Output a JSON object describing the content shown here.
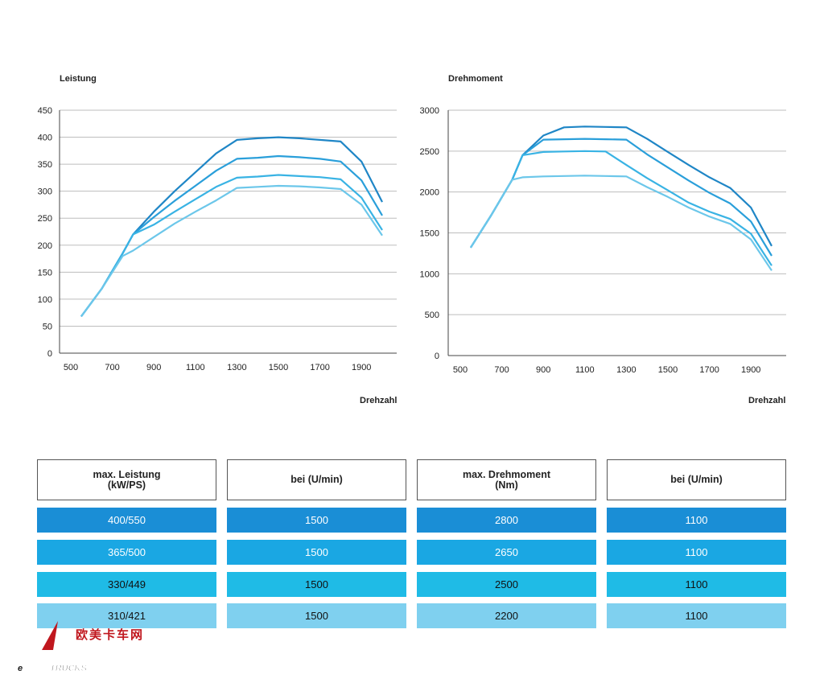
{
  "chart_data": [
    {
      "type": "line",
      "title": "Leistung",
      "xlabel": "Drehzahl",
      "ylabel": "",
      "x_ticks": [
        500,
        700,
        900,
        1100,
        1300,
        1500,
        1700,
        1900
      ],
      "y_ticks": [
        0,
        50,
        100,
        150,
        200,
        250,
        300,
        350,
        400,
        450
      ],
      "xlim": [
        500,
        2100
      ],
      "ylim": [
        0,
        450
      ],
      "grid": "horizontal",
      "series": [
        {
          "color": "#1f86c6",
          "points": [
            [
              550,
              68
            ],
            [
              650,
              120
            ],
            [
              750,
              185
            ],
            [
              800,
              220
            ],
            [
              900,
              262
            ],
            [
              1000,
              300
            ],
            [
              1100,
              335
            ],
            [
              1200,
              370
            ],
            [
              1300,
              395
            ],
            [
              1400,
              398
            ],
            [
              1500,
              400
            ],
            [
              1600,
              398
            ],
            [
              1700,
              395
            ],
            [
              1800,
              392
            ],
            [
              1900,
              355
            ],
            [
              2000,
              280
            ]
          ]
        },
        {
          "color": "#2a9fda",
          "points": [
            [
              550,
              68
            ],
            [
              650,
              120
            ],
            [
              750,
              185
            ],
            [
              800,
              220
            ],
            [
              900,
              252
            ],
            [
              1000,
              282
            ],
            [
              1100,
              310
            ],
            [
              1200,
              338
            ],
            [
              1300,
              360
            ],
            [
              1400,
              362
            ],
            [
              1500,
              365
            ],
            [
              1600,
              363
            ],
            [
              1700,
              360
            ],
            [
              1800,
              355
            ],
            [
              1900,
              320
            ],
            [
              2000,
              255
            ]
          ]
        },
        {
          "color": "#39b3e4",
          "points": [
            [
              550,
              68
            ],
            [
              650,
              120
            ],
            [
              750,
              185
            ],
            [
              800,
              220
            ],
            [
              900,
              238
            ],
            [
              1000,
              262
            ],
            [
              1100,
              285
            ],
            [
              1200,
              308
            ],
            [
              1300,
              325
            ],
            [
              1400,
              327
            ],
            [
              1500,
              330
            ],
            [
              1600,
              328
            ],
            [
              1700,
              326
            ],
            [
              1800,
              322
            ],
            [
              1900,
              288
            ],
            [
              2000,
              228
            ]
          ]
        },
        {
          "color": "#6cc7ea",
          "points": [
            [
              550,
              68
            ],
            [
              650,
              120
            ],
            [
              750,
              180
            ],
            [
              800,
              190
            ],
            [
              900,
              215
            ],
            [
              1000,
              240
            ],
            [
              1100,
              262
            ],
            [
              1200,
              283
            ],
            [
              1300,
              306
            ],
            [
              1400,
              308
            ],
            [
              1500,
              310
            ],
            [
              1600,
              309
            ],
            [
              1700,
              307
            ],
            [
              1800,
              304
            ],
            [
              1900,
              275
            ],
            [
              2000,
              218
            ]
          ]
        }
      ]
    },
    {
      "type": "line",
      "title": "Drehmoment",
      "xlabel": "Drehzahl",
      "ylabel": "",
      "x_ticks": [
        500,
        700,
        900,
        1100,
        1300,
        1500,
        1700,
        1900
      ],
      "y_ticks": [
        0,
        500,
        1000,
        1500,
        2000,
        2500,
        3000
      ],
      "xlim": [
        500,
        2100
      ],
      "ylim": [
        0,
        3000
      ],
      "grid": "horizontal",
      "series": [
        {
          "color": "#1f86c6",
          "points": [
            [
              550,
              1320
            ],
            [
              650,
              1720
            ],
            [
              750,
              2150
            ],
            [
              800,
              2450
            ],
            [
              900,
              2690
            ],
            [
              1000,
              2790
            ],
            [
              1100,
              2800
            ],
            [
              1200,
              2795
            ],
            [
              1300,
              2790
            ],
            [
              1400,
              2650
            ],
            [
              1500,
              2490
            ],
            [
              1600,
              2330
            ],
            [
              1700,
              2180
            ],
            [
              1800,
              2050
            ],
            [
              1900,
              1810
            ],
            [
              2000,
              1340
            ]
          ]
        },
        {
          "color": "#2a9fda",
          "points": [
            [
              550,
              1320
            ],
            [
              650,
              1720
            ],
            [
              750,
              2150
            ],
            [
              800,
              2450
            ],
            [
              900,
              2640
            ],
            [
              1000,
              2645
            ],
            [
              1100,
              2650
            ],
            [
              1200,
              2645
            ],
            [
              1300,
              2640
            ],
            [
              1400,
              2460
            ],
            [
              1500,
              2300
            ],
            [
              1600,
              2140
            ],
            [
              1700,
              1990
            ],
            [
              1800,
              1860
            ],
            [
              1900,
              1640
            ],
            [
              2000,
              1220
            ]
          ]
        },
        {
          "color": "#39b3e4",
          "points": [
            [
              550,
              1320
            ],
            [
              650,
              1720
            ],
            [
              750,
              2150
            ],
            [
              800,
              2450
            ],
            [
              900,
              2490
            ],
            [
              1000,
              2495
            ],
            [
              1100,
              2500
            ],
            [
              1200,
              2495
            ],
            [
              1300,
              2330
            ],
            [
              1400,
              2170
            ],
            [
              1500,
              2020
            ],
            [
              1600,
              1870
            ],
            [
              1700,
              1760
            ],
            [
              1800,
              1670
            ],
            [
              1900,
              1490
            ],
            [
              2000,
              1100
            ]
          ]
        },
        {
          "color": "#6cc7ea",
          "points": [
            [
              550,
              1320
            ],
            [
              650,
              1720
            ],
            [
              750,
              2150
            ],
            [
              800,
              2180
            ],
            [
              900,
              2190
            ],
            [
              1000,
              2195
            ],
            [
              1100,
              2200
            ],
            [
              1200,
              2195
            ],
            [
              1300,
              2190
            ],
            [
              1400,
              2060
            ],
            [
              1500,
              1940
            ],
            [
              1600,
              1810
            ],
            [
              1700,
              1700
            ],
            [
              1800,
              1610
            ],
            [
              1900,
              1420
            ],
            [
              2000,
              1040
            ]
          ]
        }
      ]
    },
    {
      "type": "table",
      "headers": [
        "max. Leistung\n(kW/PS)",
        "bei (U/min)",
        "max. Drehmoment\n(Nm)",
        "bei (U/min)"
      ],
      "rows": [
        {
          "cells": [
            "400/550",
            "1500",
            "2800",
            "1100"
          ],
          "color": "#1a8ed6",
          "text_color": "#ffffff"
        },
        {
          "cells": [
            "365/500",
            "1500",
            "2650",
            "1100"
          ],
          "color": "#1aa7e3",
          "text_color": "#ffffff"
        },
        {
          "cells": [
            "330/449",
            "1500",
            "2500",
            "1100"
          ],
          "color": "#1fbbe6",
          "text_color": "#111111"
        },
        {
          "cells": [
            "310/421",
            "1500",
            "2200",
            "1100"
          ],
          "color": "#7fd0ef",
          "text_color": "#111111"
        }
      ]
    }
  ],
  "logo": {
    "text_cn": "欧美卡车网",
    "text_en": "TRUCKS",
    "letter": "e"
  }
}
